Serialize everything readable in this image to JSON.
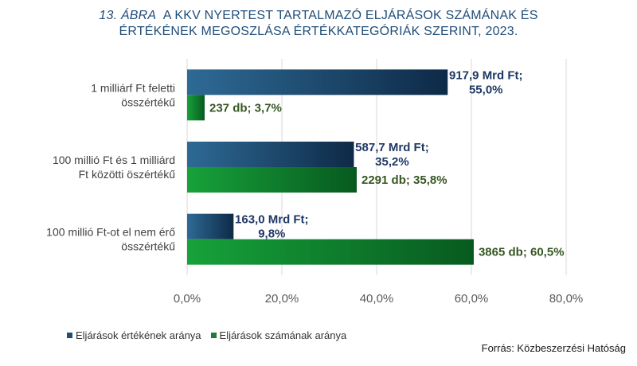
{
  "title": {
    "prefix": "13. ÁBRA",
    "line1": "A KKV NYERTEST TARTALMAZÓ ELJÁRÁSOK SZÁMÁNAK ÉS",
    "line2": "ÉRTÉKÉNEK MEGOSZLÁSA ÉRTÉKKATEGÓRIÁK SZERINT, 2023."
  },
  "source": "Forrás: Közbeszerzési Hatóság",
  "colors": {
    "value_series": "#1f4e79",
    "count_series": "#1e7d32",
    "value_label": "#1f3864",
    "count_label": "#375623",
    "gridline": "#d9d9d9"
  },
  "chart_data": {
    "type": "bar",
    "orientation": "horizontal",
    "categories": [
      [
        "1 milliárf Ft feletti",
        "összértékű"
      ],
      [
        "100 millió Ft és 1 milliárd",
        "Ft közötti öszértékű"
      ],
      [
        "100 millió Ft-ot el nem érő",
        "összértékű"
      ]
    ],
    "series": [
      {
        "name": "Eljárások értékének aránya",
        "values": [
          55.0,
          35.2,
          9.8
        ],
        "labels": [
          [
            "917,9 Mrd Ft;",
            "55,0%"
          ],
          [
            "587,7 Mrd Ft;",
            "35,2%"
          ],
          [
            "163,0 Mrd Ft;",
            "9,8%"
          ]
        ]
      },
      {
        "name": "Eljárások számának aránya",
        "values": [
          3.7,
          35.8,
          60.5
        ],
        "labels": [
          [
            "237 db; 3,7%"
          ],
          [
            "2291 db; 35,8%"
          ],
          [
            "3865 db; 60,5%"
          ]
        ]
      }
    ],
    "xlim": [
      0,
      80
    ],
    "xticks": [
      "0,0%",
      "20,0%",
      "40,0%",
      "60,0%",
      "80,0%"
    ],
    "grid": true,
    "legend_position": "bottom-left"
  }
}
